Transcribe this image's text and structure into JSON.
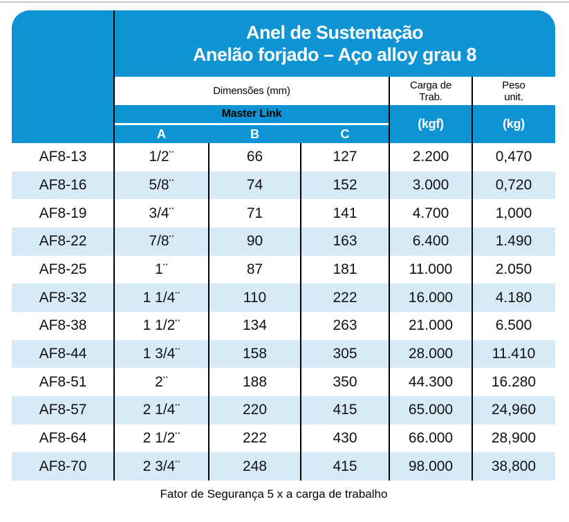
{
  "title": {
    "line1": "Anel de Sustentação",
    "line2": "Anelão forjado – Aço alloy grau 8"
  },
  "header": {
    "dimensions_label": "Dimensões (mm)",
    "master_link_label": "Master Link",
    "col_a": "A",
    "col_b": "B",
    "col_c": "C",
    "load_line1": "Carga de",
    "load_line2": "Trab.",
    "weight_line1": "Peso",
    "weight_line2": "unit.",
    "load_unit": "(kgf)",
    "weight_unit": "(kg)"
  },
  "colors": {
    "header_blue": "#0E94D4",
    "zebra_stripe": "#D7EAF8"
  },
  "rows": [
    {
      "code": "AF8-13",
      "a": "1/2¨",
      "b": "66",
      "c": "127",
      "load": "2.200",
      "weight": "0,470"
    },
    {
      "code": "AF8-16",
      "a": "5/8¨",
      "b": "74",
      "c": "152",
      "load": "3.000",
      "weight": "0,720"
    },
    {
      "code": "AF8-19",
      "a": "3/4¨",
      "b": "71",
      "c": "141",
      "load": "4.700",
      "weight": "1,000"
    },
    {
      "code": "AF8-22",
      "a": "7/8¨",
      "b": "90",
      "c": "163",
      "load": "6.400",
      "weight": "1.490"
    },
    {
      "code": "AF8-25",
      "a": "1¨",
      "b": "87",
      "c": "181",
      "load": "11.000",
      "weight": "2.050"
    },
    {
      "code": "AF8-32",
      "a": "1 1/4¨",
      "b": "110",
      "c": "222",
      "load": "16.000",
      "weight": "4.180"
    },
    {
      "code": "AF8-38",
      "a": "1 1/2¨",
      "b": "134",
      "c": "263",
      "load": "21.000",
      "weight": "6.500"
    },
    {
      "code": "AF8-44",
      "a": "1 3/4¨",
      "b": "158",
      "c": "305",
      "load": "28.000",
      "weight": "11.410"
    },
    {
      "code": "AF8-51",
      "a": "2¨",
      "b": "188",
      "c": "350",
      "load": "44.300",
      "weight": "16.280"
    },
    {
      "code": "AF8-57",
      "a": "2 1/4¨",
      "b": "220",
      "c": "415",
      "load": "65.000",
      "weight": "24,960"
    },
    {
      "code": "AF8-64",
      "a": "2 1/2¨",
      "b": "222",
      "c": "430",
      "load": "66.000",
      "weight": "28,900"
    },
    {
      "code": "AF8-70",
      "a": "2 3/4¨",
      "b": "248",
      "c": "415",
      "load": "98.000",
      "weight": "38,800"
    }
  ],
  "footer": {
    "note": "Fator de Segurança 5 x a carga de trabalho"
  }
}
